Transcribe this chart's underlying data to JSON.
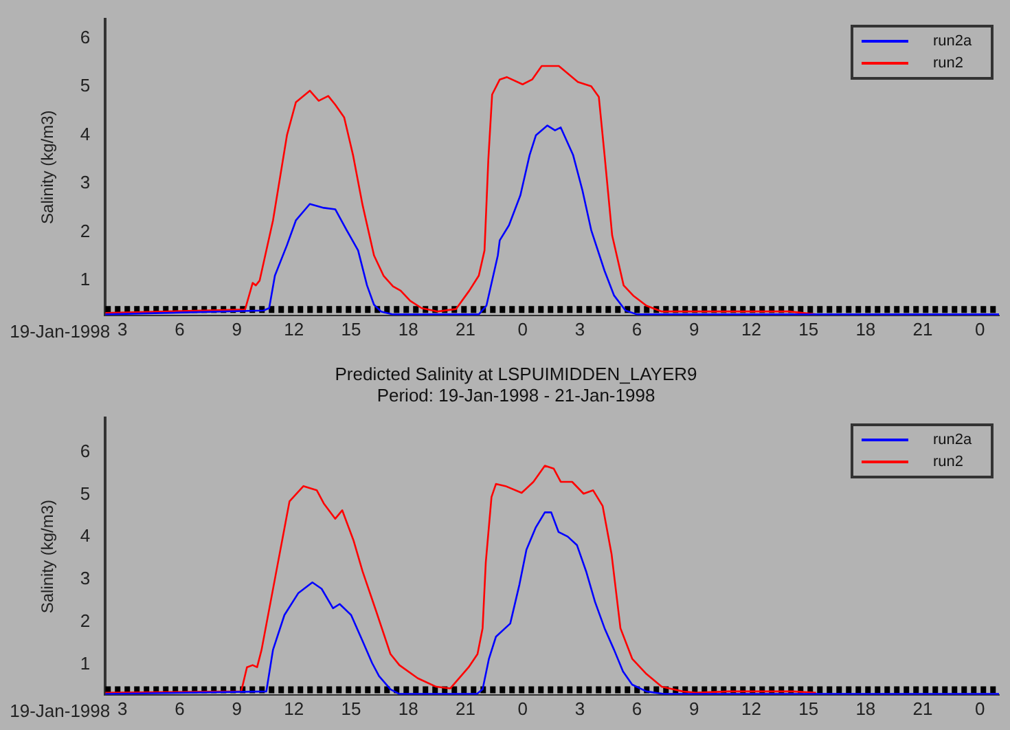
{
  "chart_data": [
    {
      "type": "line",
      "ylabel": "Salinity (kg/m3)",
      "xlim": [
        "1998-01-19T02:06",
        "1998-01-21T01:00"
      ],
      "ylim": [
        0.28,
        6.4
      ],
      "xticks": [
        {
          "value": "1998-01-19T03:00",
          "label": "3"
        },
        {
          "value": "1998-01-19T06:00",
          "label": "6"
        },
        {
          "value": "1998-01-19T09:00",
          "label": "9"
        },
        {
          "value": "1998-01-19T12:00",
          "label": "12"
        },
        {
          "value": "1998-01-19T15:00",
          "label": "15"
        },
        {
          "value": "1998-01-19T18:00",
          "label": "18"
        },
        {
          "value": "1998-01-19T21:00",
          "label": "21"
        },
        {
          "value": "1998-01-20T00:00",
          "label": "0"
        },
        {
          "value": "1998-01-20T03:00",
          "label": "3"
        },
        {
          "value": "1998-01-20T06:00",
          "label": "6"
        },
        {
          "value": "1998-01-20T09:00",
          "label": "9"
        },
        {
          "value": "1998-01-20T12:00",
          "label": "12"
        },
        {
          "value": "1998-01-20T15:00",
          "label": "15"
        },
        {
          "value": "1998-01-20T18:00",
          "label": "18"
        },
        {
          "value": "1998-01-20T21:00",
          "label": "21"
        },
        {
          "value": "1998-01-21T00:00",
          "label": "0"
        }
      ],
      "yticks": [
        1,
        2,
        3,
        4,
        5,
        6
      ],
      "grid": false,
      "legend": "top right",
      "marker": "none",
      "line_style": "solid",
      "annotations": [
        "19-Jan-1998"
      ],
      "ref_lines": [
        {
          "axis": "y",
          "value": 0.4,
          "color": "#000000",
          "line_style": "dotted"
        }
      ],
      "series": [
        {
          "name": "run2a",
          "color": "#0000ff",
          "x": [
            "1998-01-19T02:06",
            "1998-01-19T10:24",
            "1998-01-19T10:42",
            "1998-01-19T11:00",
            "1998-01-19T11:38",
            "1998-01-19T12:06",
            "1998-01-19T12:50",
            "1998-01-19T13:34",
            "1998-01-19T14:10",
            "1998-01-19T14:46",
            "1998-01-19T15:22",
            "1998-01-19T15:50",
            "1998-01-19T16:12",
            "1998-01-19T16:34",
            "1998-01-19T17:12",
            "1998-01-19T21:42",
            "1998-01-19T22:06",
            "1998-01-19T22:42",
            "1998-01-19T22:48",
            "1998-01-19T23:17",
            "1998-01-19T23:53",
            "1998-01-20T00:22",
            "1998-01-20T00:42",
            "1998-01-20T01:18",
            "1998-01-20T01:42",
            "1998-01-20T02:00",
            "1998-01-20T02:39",
            "1998-01-20T03:08",
            "1998-01-20T03:36",
            "1998-01-20T04:18",
            "1998-01-20T04:48",
            "1998-01-20T05:24",
            "1998-01-20T06:00",
            "1998-01-21T01:00"
          ],
          "values": [
            0.3,
            0.38,
            0.43,
            1.1,
            1.73,
            2.24,
            2.58,
            2.5,
            2.47,
            2.04,
            1.62,
            0.9,
            0.5,
            0.36,
            0.3,
            0.3,
            0.48,
            1.52,
            1.83,
            2.14,
            2.76,
            3.59,
            4.0,
            4.2,
            4.1,
            4.16,
            3.59,
            2.87,
            2.04,
            1.2,
            0.69,
            0.38,
            0.3,
            0.3
          ]
        },
        {
          "name": "run2",
          "color": "#ff0000",
          "x": [
            "1998-01-19T02:06",
            "1998-01-19T09:26",
            "1998-01-19T09:50",
            "1998-01-19T10:00",
            "1998-01-19T10:12",
            "1998-01-19T10:54",
            "1998-01-19T11:38",
            "1998-01-19T12:06",
            "1998-01-19T12:50",
            "1998-01-19T13:18",
            "1998-01-19T13:48",
            "1998-01-19T14:10",
            "1998-01-19T14:38",
            "1998-01-19T15:06",
            "1998-01-19T15:36",
            "1998-01-19T16:12",
            "1998-01-19T16:42",
            "1998-01-19T17:12",
            "1998-01-19T17:36",
            "1998-01-19T18:06",
            "1998-01-19T18:42",
            "1998-01-19T19:33",
            "1998-01-19T20:30",
            "1998-01-19T21:12",
            "1998-01-19T21:42",
            "1998-01-19T22:00",
            "1998-01-19T22:12",
            "1998-01-19T22:24",
            "1998-01-19T22:48",
            "1998-01-19T23:10",
            "1998-01-20T00:00",
            "1998-01-20T00:30",
            "1998-01-20T01:00",
            "1998-01-20T01:54",
            "1998-01-20T02:54",
            "1998-01-20T03:36",
            "1998-01-20T04:00",
            "1998-01-20T04:18",
            "1998-01-20T04:42",
            "1998-01-20T05:18",
            "1998-01-20T05:48",
            "1998-01-20T06:30",
            "1998-01-20T07:18",
            "1998-01-20T09:12",
            "1998-01-20T11:06",
            "1998-01-20T14:00",
            "1998-01-20T15:24"
          ],
          "values": [
            0.33,
            0.4,
            0.95,
            0.9,
            1.0,
            2.24,
            4.0,
            4.68,
            4.92,
            4.71,
            4.81,
            4.63,
            4.37,
            3.59,
            2.56,
            1.52,
            1.1,
            0.88,
            0.79,
            0.58,
            0.43,
            0.36,
            0.41,
            0.79,
            1.1,
            1.62,
            3.49,
            4.84,
            5.15,
            5.2,
            5.05,
            5.15,
            5.43,
            5.43,
            5.1,
            5.01,
            4.79,
            3.59,
            1.93,
            0.9,
            0.69,
            0.48,
            0.36,
            0.36,
            0.36,
            0.36,
            0.3
          ]
        }
      ]
    },
    {
      "type": "line",
      "title": "Predicted Salinity at LSPUIMIDDEN_LAYER9",
      "subtitle": "Period: 19-Jan-1998 - 21-Jan-1998",
      "ylabel": "Salinity (kg/m3)",
      "xlim": [
        "1998-01-19T02:06",
        "1998-01-21T01:00"
      ],
      "ylim": [
        0.28,
        6.8
      ],
      "xticks": [
        {
          "value": "1998-01-19T03:00",
          "label": "3"
        },
        {
          "value": "1998-01-19T06:00",
          "label": "6"
        },
        {
          "value": "1998-01-19T09:00",
          "label": "9"
        },
        {
          "value": "1998-01-19T12:00",
          "label": "12"
        },
        {
          "value": "1998-01-19T15:00",
          "label": "15"
        },
        {
          "value": "1998-01-19T18:00",
          "label": "18"
        },
        {
          "value": "1998-01-19T21:00",
          "label": "21"
        },
        {
          "value": "1998-01-20T00:00",
          "label": "0"
        },
        {
          "value": "1998-01-20T03:00",
          "label": "3"
        },
        {
          "value": "1998-01-20T06:00",
          "label": "6"
        },
        {
          "value": "1998-01-20T09:00",
          "label": "9"
        },
        {
          "value": "1998-01-20T12:00",
          "label": "12"
        },
        {
          "value": "1998-01-20T15:00",
          "label": "15"
        },
        {
          "value": "1998-01-20T18:00",
          "label": "18"
        },
        {
          "value": "1998-01-20T21:00",
          "label": "21"
        },
        {
          "value": "1998-01-21T00:00",
          "label": "0"
        }
      ],
      "yticks": [
        1,
        2,
        3,
        4,
        5,
        6
      ],
      "grid": false,
      "legend": "top right",
      "marker": "none",
      "line_style": "solid",
      "annotations": [
        "19-Jan-1998"
      ],
      "ref_lines": [
        {
          "axis": "y",
          "value": 0.4,
          "color": "#000000",
          "line_style": "dotted"
        }
      ],
      "series": [
        {
          "name": "run2a",
          "color": "#0000ff",
          "x": [
            "1998-01-19T02:06",
            "1998-01-19T10:33",
            "1998-01-19T10:54",
            "1998-01-19T11:30",
            "1998-01-19T12:14",
            "1998-01-19T12:58",
            "1998-01-19T13:27",
            "1998-01-19T14:03",
            "1998-01-19T14:24",
            "1998-01-19T15:00",
            "1998-01-19T15:36",
            "1998-01-19T16:06",
            "1998-01-19T16:28",
            "1998-01-19T17:04",
            "1998-01-19T17:32",
            "1998-01-19T21:36",
            "1998-01-19T21:54",
            "1998-01-19T22:14",
            "1998-01-19T22:36",
            "1998-01-19T23:21",
            "1998-01-19T23:50",
            "1998-01-20T00:12",
            "1998-01-20T00:41",
            "1998-01-20T01:10",
            "1998-01-20T01:30",
            "1998-01-20T01:53",
            "1998-01-20T02:22",
            "1998-01-20T02:51",
            "1998-01-20T03:20",
            "1998-01-20T03:48",
            "1998-01-20T04:18",
            "1998-01-20T04:48",
            "1998-01-20T05:16",
            "1998-01-20T05:45",
            "1998-01-20T06:30",
            "1998-01-20T07:24",
            "1998-01-21T01:00"
          ],
          "values": [
            0.3,
            0.36,
            1.34,
            2.16,
            2.68,
            2.93,
            2.78,
            2.32,
            2.42,
            2.16,
            1.55,
            1.03,
            0.72,
            0.41,
            0.3,
            0.3,
            0.41,
            1.13,
            1.65,
            1.96,
            2.88,
            3.7,
            4.22,
            4.58,
            4.58,
            4.12,
            4.01,
            3.81,
            3.19,
            2.47,
            1.85,
            1.34,
            0.83,
            0.52,
            0.36,
            0.3,
            0.3
          ]
        },
        {
          "name": "run2",
          "color": "#ff0000",
          "x": [
            "1998-01-19T02:06",
            "1998-01-19T09:14",
            "1998-01-19T09:32",
            "1998-01-19T09:50",
            "1998-01-19T10:04",
            "1998-01-19T10:18",
            "1998-01-19T11:02",
            "1998-01-19T11:46",
            "1998-01-19T12:30",
            "1998-01-19T13:12",
            "1998-01-19T13:34",
            "1998-01-19T14:10",
            "1998-01-19T14:32",
            "1998-01-19T15:08",
            "1998-01-19T15:36",
            "1998-01-19T16:18",
            "1998-01-19T17:04",
            "1998-01-19T17:32",
            "1998-01-19T18:30",
            "1998-01-19T19:28",
            "1998-01-19T20:12",
            "1998-01-19T21:10",
            "1998-01-19T21:38",
            "1998-01-19T21:54",
            "1998-01-19T22:04",
            "1998-01-19T22:22",
            "1998-01-19T22:36",
            "1998-01-19T23:06",
            "1998-01-19T23:57",
            "1998-01-20T00:34",
            "1998-01-20T01:10",
            "1998-01-20T01:38",
            "1998-01-20T02:00",
            "1998-01-20T02:36",
            "1998-01-20T03:12",
            "1998-01-20T03:42",
            "1998-01-20T04:12",
            "1998-01-20T04:40",
            "1998-01-20T05:08",
            "1998-01-20T05:45",
            "1998-01-20T06:30",
            "1998-01-20T07:18",
            "1998-01-20T08:24",
            "1998-01-20T09:06",
            "1998-01-20T10:48",
            "1998-01-20T14:12",
            "1998-01-20T15:24"
          ],
          "values": [
            0.33,
            0.36,
            0.93,
            0.98,
            0.93,
            1.34,
            3.09,
            4.84,
            5.2,
            5.1,
            4.79,
            4.43,
            4.63,
            3.91,
            3.19,
            2.27,
            1.24,
            0.98,
            0.67,
            0.47,
            0.43,
            0.93,
            1.24,
            1.85,
            3.4,
            4.94,
            5.25,
            5.2,
            5.04,
            5.3,
            5.68,
            5.61,
            5.3,
            5.3,
            5.02,
            5.1,
            4.73,
            3.6,
            1.85,
            1.13,
            0.77,
            0.47,
            0.36,
            0.33,
            0.36,
            0.36,
            0.33
          ]
        }
      ]
    }
  ]
}
